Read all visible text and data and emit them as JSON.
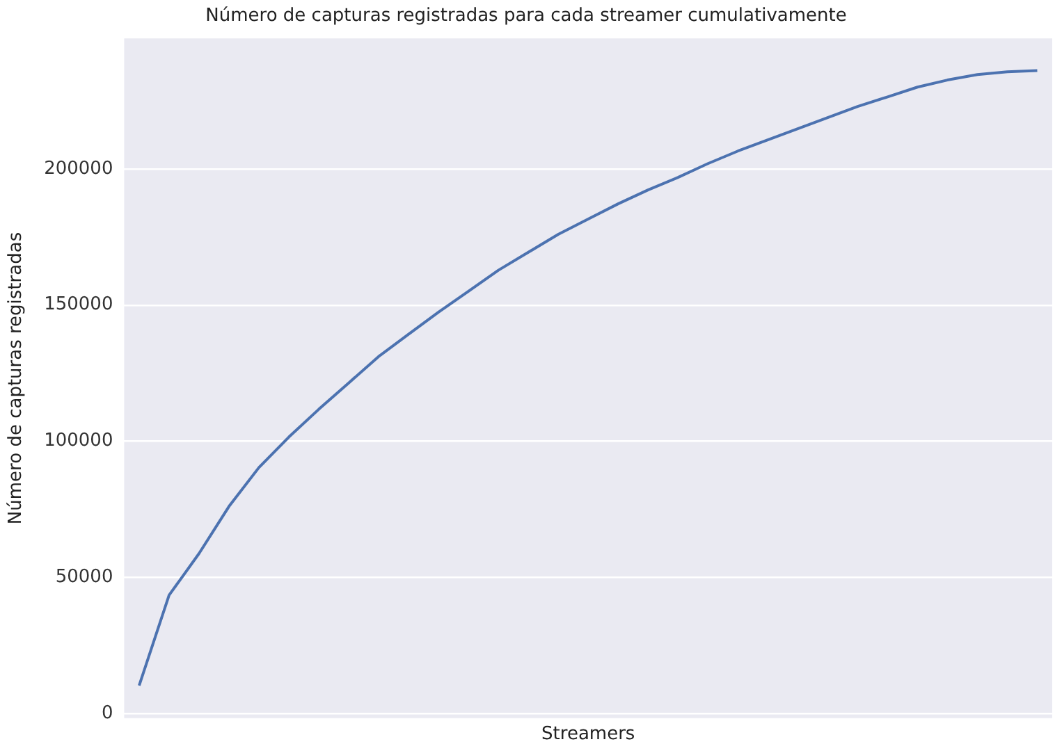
{
  "chart_data": {
    "type": "line",
    "title": "Número de capturas registradas para cada streamer cumulativamente",
    "xlabel": "Streamers",
    "ylabel": "Número de capturas registradas",
    "categories": [
      null,
      null,
      null,
      null,
      null,
      null,
      null,
      null,
      null,
      null,
      null,
      null,
      null,
      null,
      null,
      null,
      null,
      null,
      null,
      null,
      null,
      null,
      null,
      null,
      null,
      null,
      null,
      null,
      null,
      null,
      null
    ],
    "series": [
      {
        "color": "#4c72b0",
        "values": [
          10200,
          43400,
          58700,
          76000,
          90300,
          101500,
          111700,
          121400,
          131100,
          139300,
          147400,
          155100,
          162800,
          169400,
          176000,
          181600,
          187200,
          192300,
          196900,
          202000,
          206600,
          210700,
          214800,
          218900,
          223000,
          226500,
          230100,
          232700,
          234700,
          235700,
          236200
        ]
      }
    ],
    "ylim": [
      -1800,
      248000
    ],
    "yticks": [
      0,
      50000,
      100000,
      150000,
      200000
    ],
    "grid": "y",
    "legend": false,
    "marker": "none",
    "line_style": "solid",
    "tick_labels": "y"
  }
}
